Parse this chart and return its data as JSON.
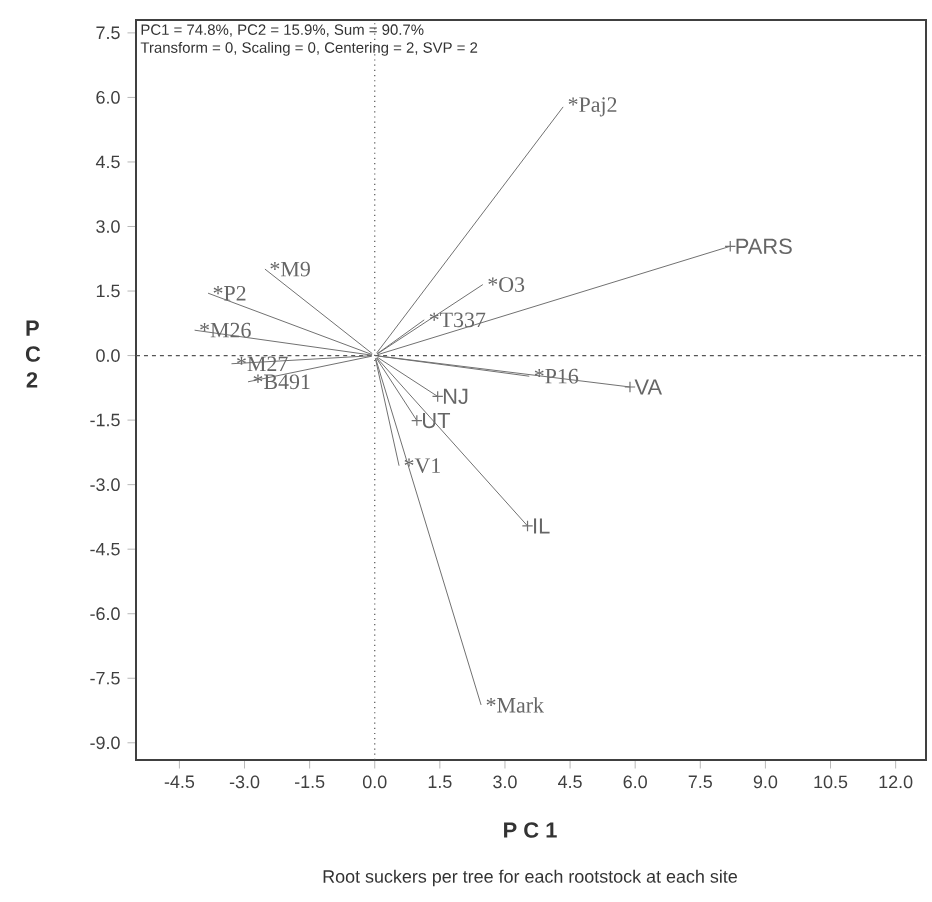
{
  "chart_data": {
    "type": "line",
    "xlabel": "P C 1",
    "ylabel": "P C 2",
    "subtitle": "Root suckers per tree for each rootstock at each site",
    "annotations": [
      "PC1 = 74.8%, PC2 = 15.9%, Sum = 90.7%",
      "Transform = 0, Scaling = 0, Centering = 2, SVP = 2"
    ],
    "xlim": [
      -5.5,
      12.7
    ],
    "ylim": [
      -9.4,
      7.8
    ],
    "xticks": [
      {
        "value": -4.5,
        "label": "-4.5"
      },
      {
        "value": -3,
        "label": "-3.0"
      },
      {
        "value": -1.5,
        "label": "-1.5"
      },
      {
        "value": 0,
        "label": "0.0"
      },
      {
        "value": 1.5,
        "label": "1.5"
      },
      {
        "value": 3,
        "label": "3.0"
      },
      {
        "value": 4.5,
        "label": "4.5"
      },
      {
        "value": 6,
        "label": "6.0"
      },
      {
        "value": 7.5,
        "label": "7.5"
      },
      {
        "value": 9,
        "label": "9.0"
      },
      {
        "value": 10.5,
        "label": "10.5"
      },
      {
        "value": 12,
        "label": "12.0"
      }
    ],
    "yticks": [
      {
        "value": 7.5,
        "label": "7.5"
      },
      {
        "value": 6,
        "label": "6.0"
      },
      {
        "value": 4.5,
        "label": "4.5"
      },
      {
        "value": 3,
        "label": "3.0"
      },
      {
        "value": 1.5,
        "label": "1.5"
      },
      {
        "value": 0,
        "label": "0.0"
      },
      {
        "value": -1.5,
        "label": "-1.5"
      },
      {
        "value": -3,
        "label": "-3.0"
      },
      {
        "value": -4.5,
        "label": "-4.5"
      },
      {
        "value": -6,
        "label": "-6.0"
      },
      {
        "value": -7.5,
        "label": "-7.5"
      },
      {
        "value": -9,
        "label": "-9.0"
      }
    ],
    "ref_lines": [
      {
        "axis": "x",
        "value": 0,
        "line_style": "dotted",
        "color": "#555555"
      },
      {
        "axis": "y",
        "value": 0,
        "line_style": "dashed",
        "color": "#555555"
      }
    ],
    "line_style": "solid",
    "series": [
      {
        "name": "*Paj2",
        "marker": "none",
        "color": "#707070",
        "x": [
          0,
          4.34
        ],
        "values": [
          0,
          5.78
        ]
      },
      {
        "name": "PARS",
        "marker": "cross",
        "color": "#707070",
        "x": [
          0,
          8.19
        ],
        "values": [
          0,
          2.54
        ]
      },
      {
        "name": "*O3",
        "marker": "none",
        "color": "#707070",
        "x": [
          0,
          2.49
        ],
        "values": [
          0,
          1.65
        ]
      },
      {
        "name": "*T337",
        "marker": "none",
        "color": "#707070",
        "x": [
          0,
          1.14
        ],
        "values": [
          0,
          0.83
        ]
      },
      {
        "name": "*P16",
        "marker": "none",
        "color": "#707070",
        "x": [
          0,
          3.56
        ],
        "values": [
          0,
          -0.48
        ]
      },
      {
        "name": "VA",
        "marker": "cross",
        "color": "#707070",
        "x": [
          0,
          5.88
        ],
        "values": [
          0,
          -0.73
        ]
      },
      {
        "name": "NJ",
        "marker": "cross",
        "color": "#707070",
        "x": [
          0,
          1.45
        ],
        "values": [
          0,
          -0.95
        ]
      },
      {
        "name": "UT",
        "marker": "cross",
        "color": "#707070",
        "x": [
          0,
          0.97
        ],
        "values": [
          0,
          -1.51
        ]
      },
      {
        "name": "*V1",
        "marker": "none",
        "color": "#707070",
        "x": [
          0,
          0.56
        ],
        "values": [
          0,
          -2.56
        ]
      },
      {
        "name": "IL",
        "marker": "cross",
        "color": "#707070",
        "x": [
          0,
          3.52
        ],
        "values": [
          0,
          -3.96
        ]
      },
      {
        "name": "*Mark",
        "marker": "none",
        "color": "#707070",
        "x": [
          0,
          2.45
        ],
        "values": [
          0,
          -8.12
        ]
      },
      {
        "name": "*M9",
        "marker": "none",
        "color": "#707070",
        "x": [
          0,
          -2.53
        ],
        "values": [
          0,
          2.01
        ]
      },
      {
        "name": "*P2",
        "marker": "none",
        "color": "#707070",
        "x": [
          0,
          -3.84
        ],
        "values": [
          0,
          1.45
        ]
      },
      {
        "name": "*M26",
        "marker": "none",
        "color": "#707070",
        "x": [
          0,
          -4.15
        ],
        "values": [
          0,
          0.59
        ]
      },
      {
        "name": "*M27",
        "marker": "none",
        "color": "#707070",
        "x": [
          0,
          -3.3
        ],
        "values": [
          0,
          -0.19
        ]
      },
      {
        "name": "*B491",
        "marker": "none",
        "color": "#707070",
        "x": [
          0,
          -2.92
        ],
        "values": [
          0,
          -0.61
        ]
      }
    ]
  }
}
